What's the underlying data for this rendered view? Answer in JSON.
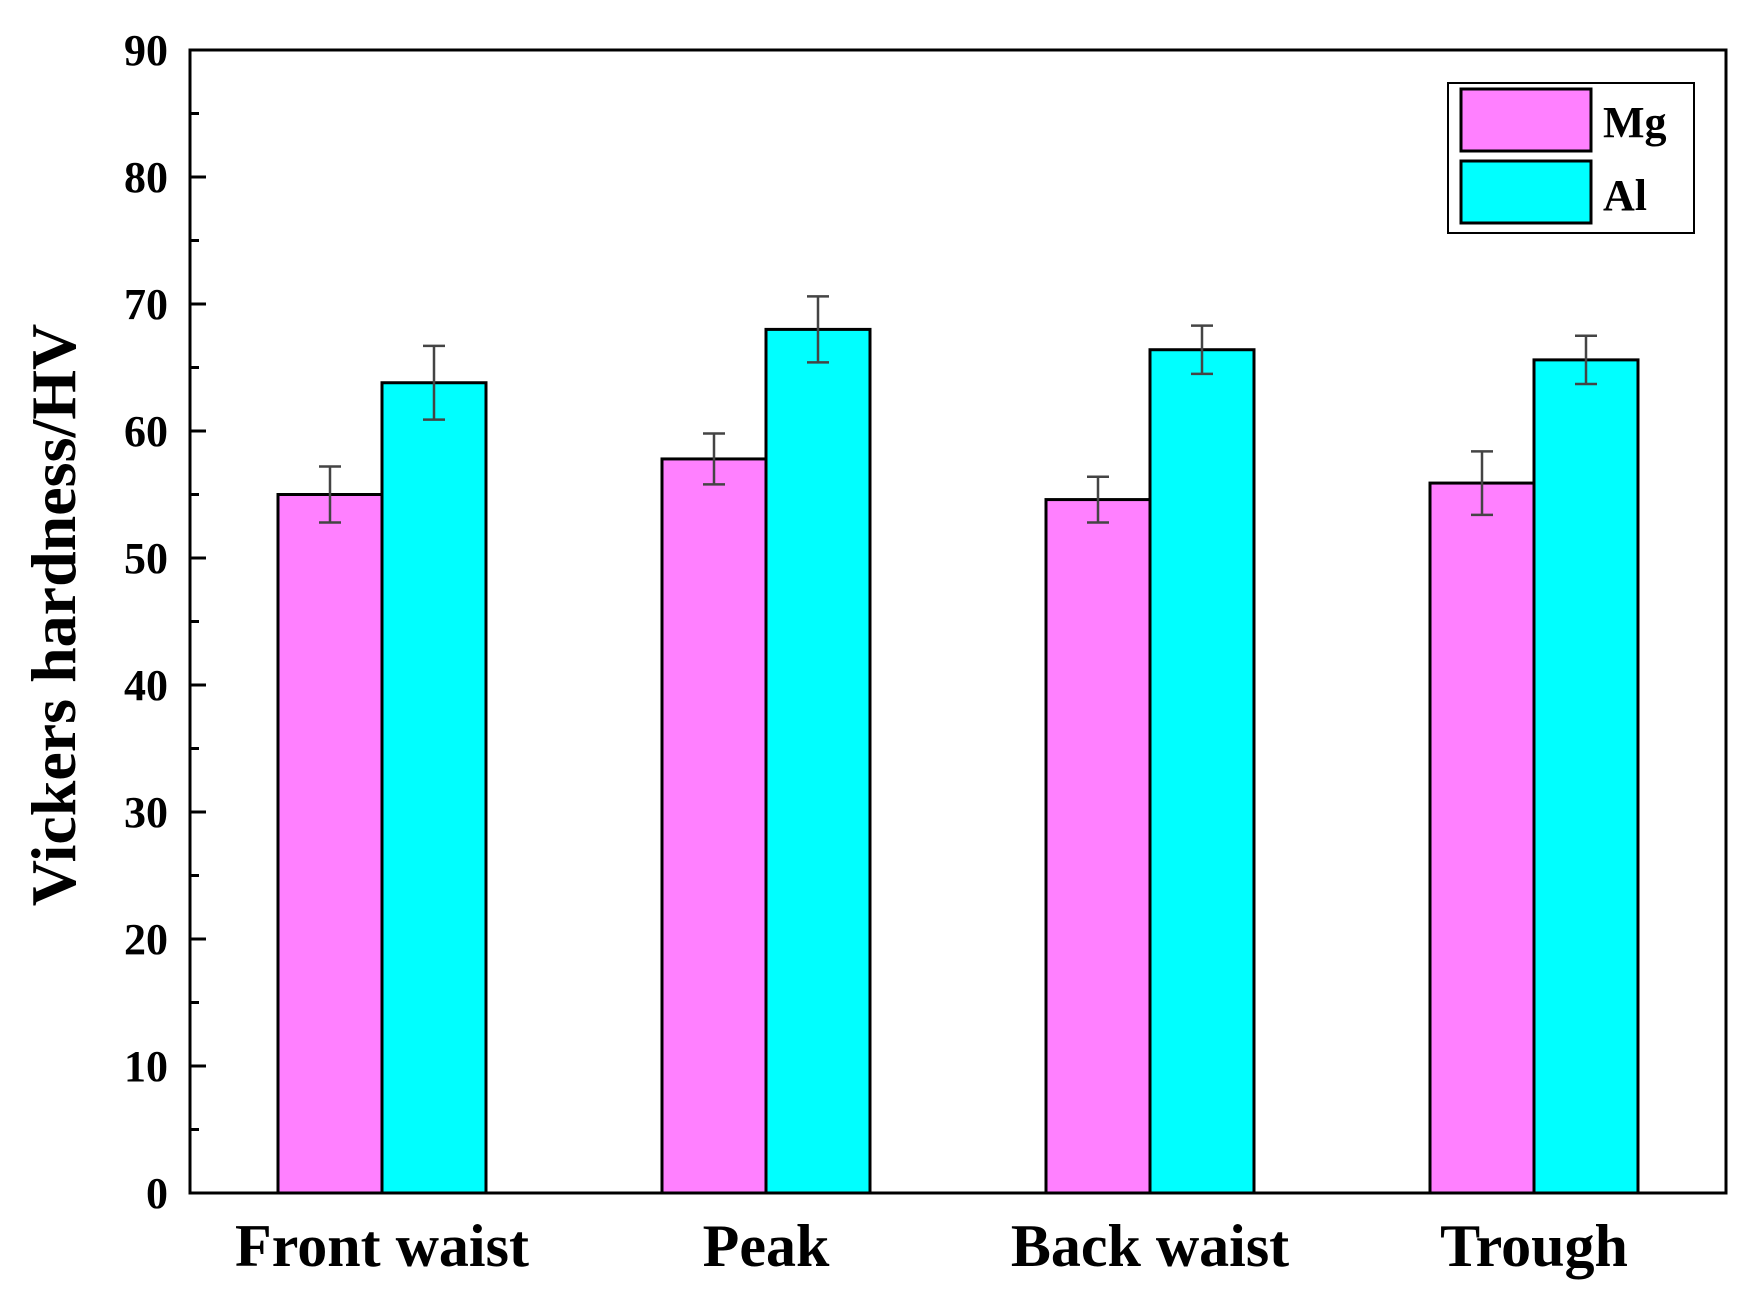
{
  "chart_data": {
    "type": "bar",
    "title": "",
    "xlabel": "",
    "ylabel": "Vickers hardness/HV",
    "ylim": [
      0,
      90
    ],
    "yticks": [
      0,
      10,
      20,
      30,
      40,
      50,
      60,
      70,
      80,
      90
    ],
    "categories": [
      "Front waist",
      "Peak",
      "Back waist",
      "Trough"
    ],
    "series": [
      {
        "name": "Mg",
        "color": "#ff80ff",
        "values": [
          55.0,
          57.8,
          54.6,
          55.9
        ],
        "errors": [
          2.2,
          2.0,
          1.8,
          2.5
        ]
      },
      {
        "name": "Al",
        "color": "#00ffff",
        "values": [
          63.8,
          68.0,
          66.4,
          65.6
        ],
        "errors": [
          2.9,
          2.6,
          1.9,
          1.9
        ]
      }
    ],
    "legend_position": "top-right",
    "grid": false
  }
}
